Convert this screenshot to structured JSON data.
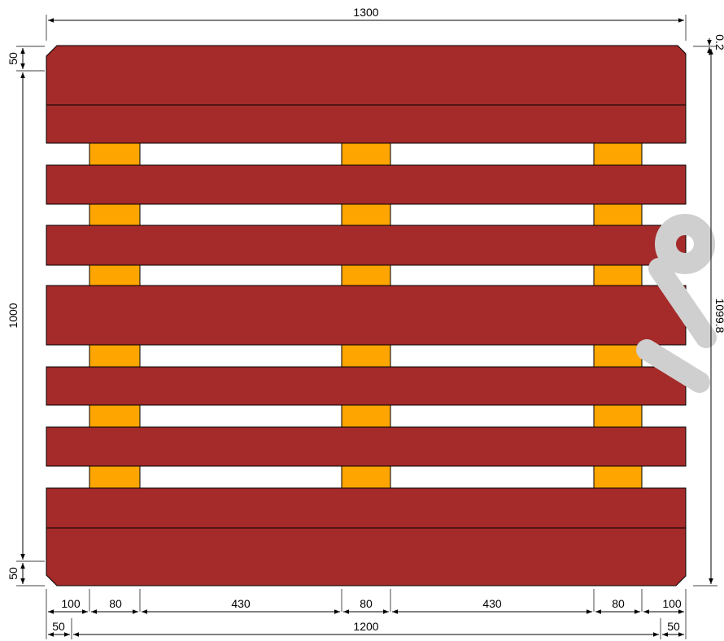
{
  "drawing": {
    "colors": {
      "board": "#a52a2a",
      "block": "#ffa500",
      "line": "#000000",
      "background": "#ffffff"
    },
    "dimensions": {
      "top_width": "1300",
      "top_offset_right": "0.2",
      "left_top_chamfer": "50",
      "left_height": "1000",
      "left_bottom_chamfer": "50",
      "right_height": "1099.8",
      "bottom_row1": [
        "100",
        "80",
        "430",
        "80",
        "430",
        "80",
        "100"
      ],
      "bottom_row2": [
        "50",
        "1200",
        "50"
      ]
    }
  }
}
